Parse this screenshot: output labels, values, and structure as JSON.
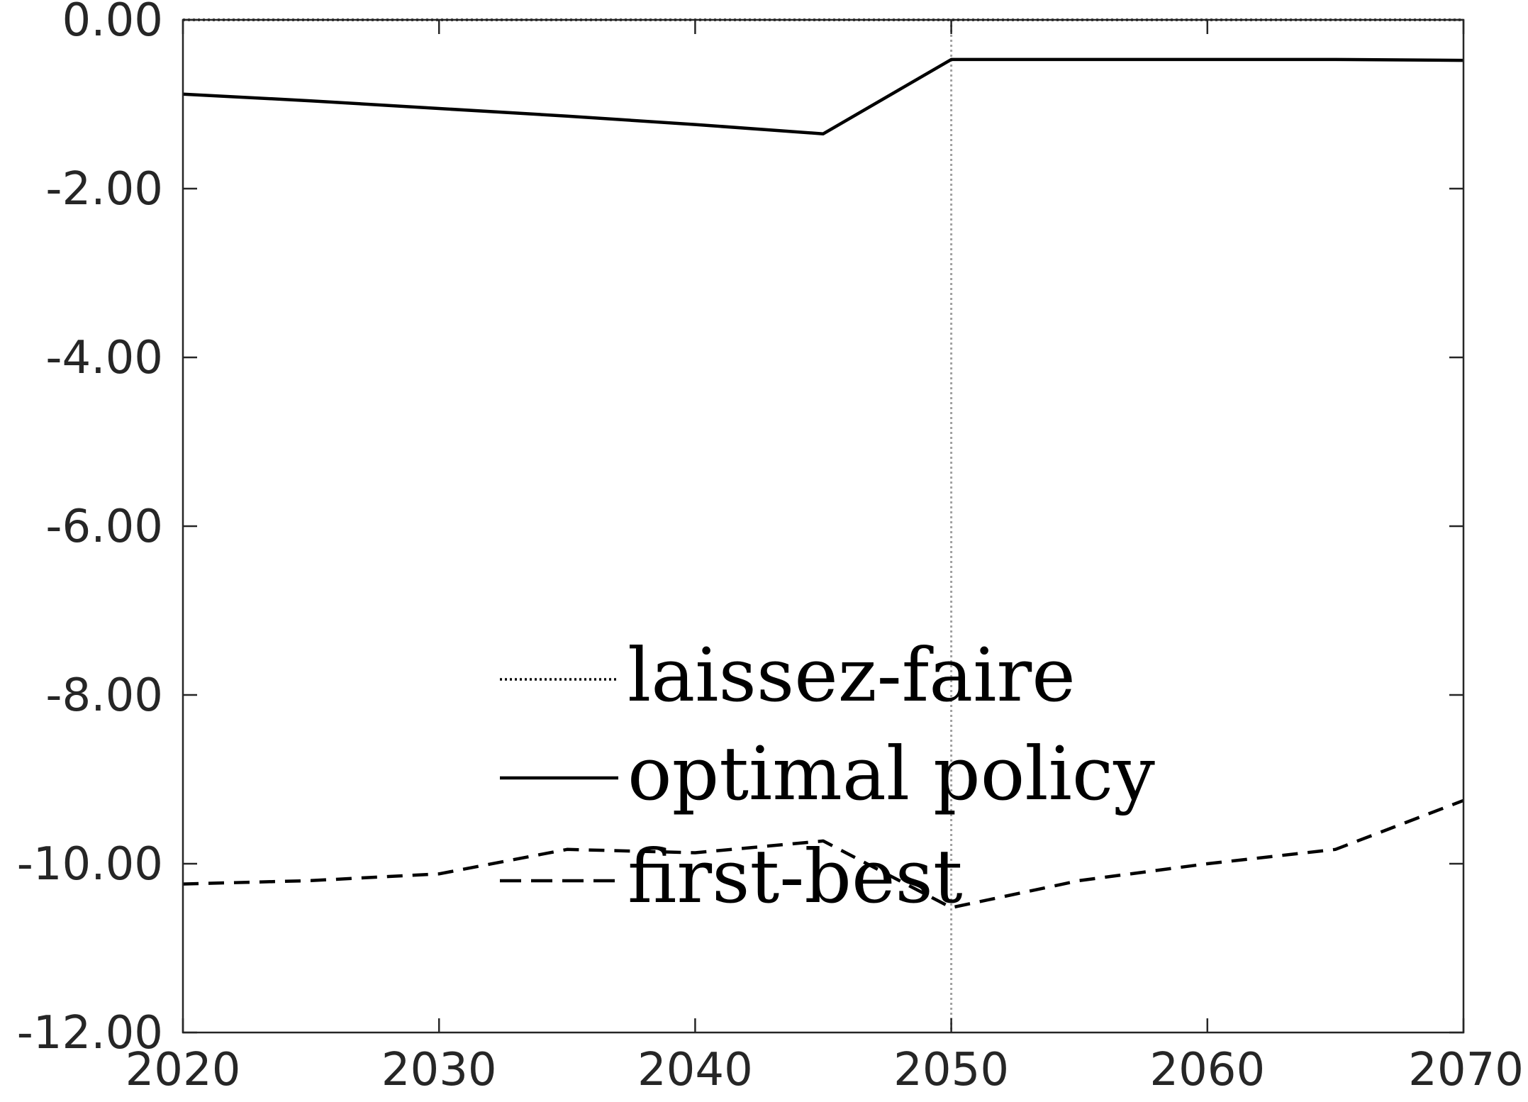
{
  "chart_data": {
    "type": "line",
    "title": "",
    "xlabel": "",
    "ylabel": "",
    "xlim": [
      2020,
      2070
    ],
    "ylim": [
      -12,
      0
    ],
    "x_ticks": [
      "2020",
      "2030",
      "2040",
      "2050",
      "2060",
      "2070"
    ],
    "y_ticks": [
      "0.00",
      "-2.00",
      "-4.00",
      "-6.00",
      "-8.00",
      "-10.00",
      "-12.00"
    ],
    "grid": false,
    "reference_line_x": 2050,
    "legend_position": "center-left-bottom",
    "series": [
      {
        "name": "laissez-faire",
        "style": "dotted",
        "x": [
          2020,
          2070
        ],
        "y": [
          0.0,
          0.0
        ]
      },
      {
        "name": "optimal policy",
        "style": "solid",
        "x": [
          2020,
          2025,
          2030,
          2035,
          2040,
          2045,
          2050,
          2055,
          2060,
          2065,
          2070
        ],
        "y": [
          -0.88,
          -0.96,
          -1.05,
          -1.14,
          -1.24,
          -1.35,
          -0.47,
          -0.47,
          -0.47,
          -0.47,
          -0.48
        ]
      },
      {
        "name": "first-best",
        "style": "dashed",
        "x": [
          2020,
          2025,
          2030,
          2035,
          2040,
          2045,
          2050,
          2055,
          2060,
          2065,
          2070
        ],
        "y": [
          -10.24,
          -10.2,
          -10.12,
          -9.83,
          -9.87,
          -9.73,
          -10.52,
          -10.2,
          -10.0,
          -9.83,
          -9.25
        ]
      }
    ],
    "colors": {
      "line": "#000000",
      "axis": "#262626",
      "reference": "#a0a0a0"
    }
  }
}
